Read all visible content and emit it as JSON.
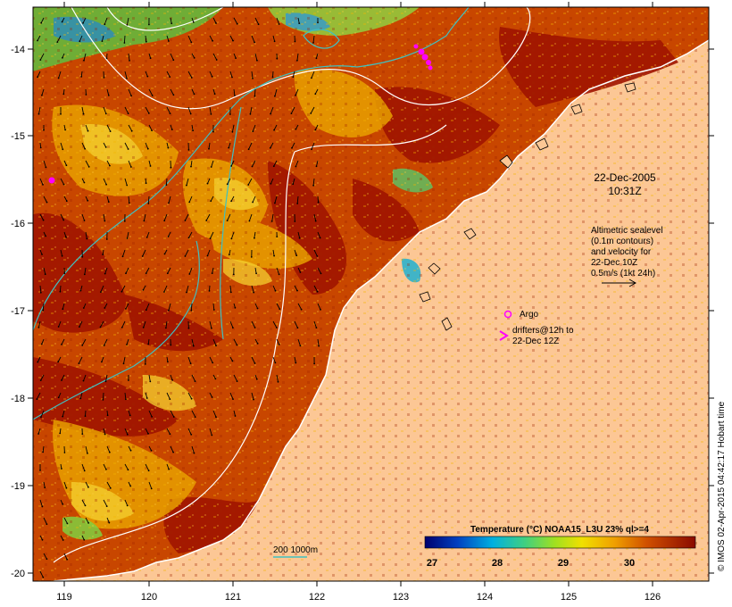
{
  "map": {
    "date": "22-Dec-2005",
    "time": "10:31Z",
    "altimetry_lines": [
      "Altimetric sealevel",
      "(0.1m contours)",
      "and velocity for",
      "22-Dec 10Z",
      "0.5m/s (1kt 24h)"
    ],
    "argo_label": "Argo",
    "drifter_lines": [
      "drifters@12h to",
      "22-Dec 12Z"
    ],
    "depth_legend": "200  1000m",
    "colorbar_title": "Temperature (°C) NOAA15_L3U 23% ql>=4",
    "colorbar_ticks": [
      "27",
      "28",
      "29",
      "30"
    ],
    "credit": "© IMOS 02-Apr-2015 04:42:17 Hobart time",
    "lat_ticks": [
      "-14",
      "-15",
      "-16",
      "-17",
      "-18",
      "-19",
      "-20"
    ],
    "lon_ticks": [
      "119",
      "120",
      "121",
      "122",
      "123",
      "124",
      "125",
      "126"
    ],
    "colors": {
      "land": "#fcc795",
      "sst_warm": "#a01400",
      "sst_mid": "#e07000",
      "sst_cool": "#f0c020",
      "contour": "#ffffff",
      "isobath": "#40c0c0",
      "marker": "#ff00ff"
    }
  }
}
